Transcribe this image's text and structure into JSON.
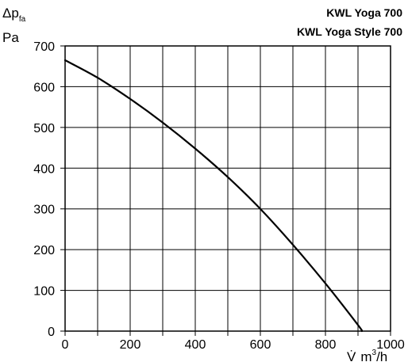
{
  "chart_data": {
    "type": "line",
    "title": [
      "KWL Yoga 700",
      "KWL Yoga Style 700"
    ],
    "ylabel": {
      "symbol": "Δp",
      "subscript": "fa",
      "unit": "Pa"
    },
    "xlabel": {
      "symbol": "V̇",
      "unit_prefix": "m",
      "unit_sup": "3",
      "unit_suffix": "/h"
    },
    "xlim": [
      0,
      1000
    ],
    "ylim": [
      0,
      700
    ],
    "x_grid_step": 100,
    "y_grid_step": 100,
    "x_tick_labels": [
      "0",
      "200",
      "400",
      "600",
      "800",
      "1000"
    ],
    "y_tick_labels": [
      "0",
      "100",
      "200",
      "300",
      "400",
      "500",
      "600",
      "700"
    ],
    "grid": true,
    "series": [
      {
        "x": [
          0,
          100,
          200,
          300,
          400,
          500,
          600,
          700,
          800,
          900,
          912
        ],
        "y": [
          665,
          622,
          570,
          512,
          448,
          378,
          300,
          212,
          117,
          15,
          0
        ]
      }
    ],
    "colors": {
      "line": "#000000",
      "grid": "#000000"
    }
  }
}
